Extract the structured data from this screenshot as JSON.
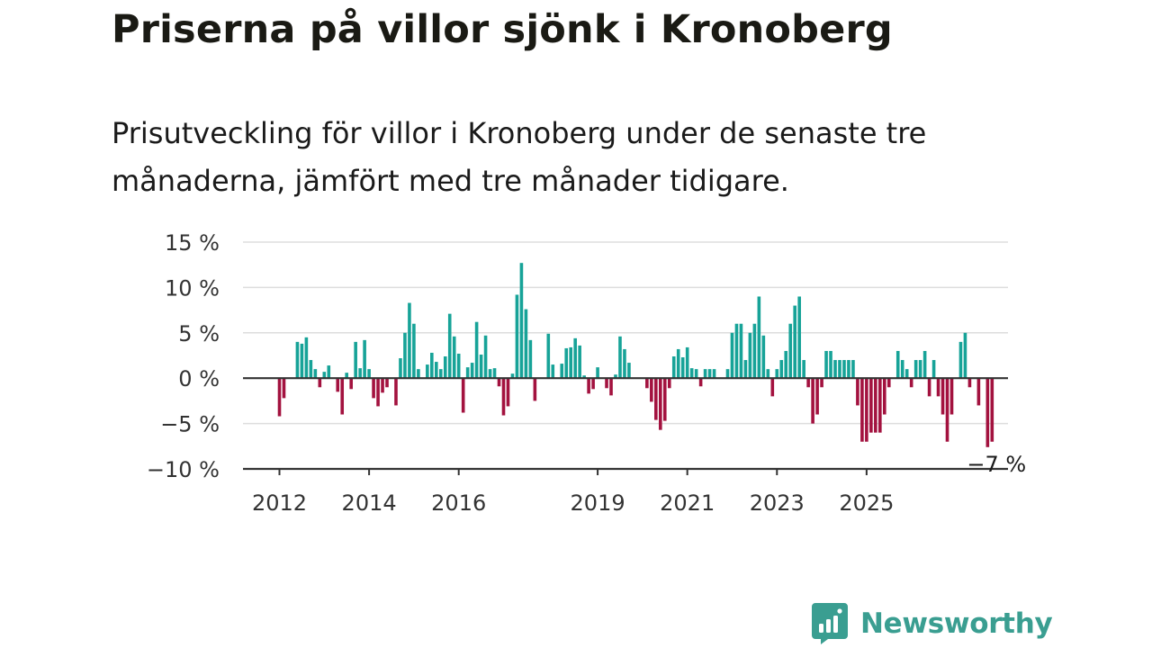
{
  "title": "Priserna på villor sjönk i Kronoberg",
  "subtitle": "Prisutveckling för villor i Kronoberg under de senaste tre månaderna, jämfört med tre månader tidigare.",
  "brand": {
    "name": "Newsworthy",
    "icon": "newsworthy-chart-icon",
    "color": "#3a9e91"
  },
  "colors": {
    "positive": "#17a398",
    "negative": "#a3123f",
    "grid": "#dddddd",
    "axis": "#333333"
  },
  "chart_data": {
    "type": "bar",
    "ylim": [
      -10,
      15
    ],
    "yticks": [
      {
        "value": 15,
        "label": "15 %"
      },
      {
        "value": 10,
        "label": "10 %"
      },
      {
        "value": 5,
        "label": "5 %"
      },
      {
        "value": 0,
        "label": "0 %"
      },
      {
        "value": -5,
        "label": "−5 %"
      },
      {
        "value": -10,
        "label": "−10 %"
      }
    ],
    "xticks": [
      {
        "label": "2012",
        "index": 0
      },
      {
        "label": "2014",
        "index": 20
      },
      {
        "label": "2016",
        "index": 40
      },
      {
        "label": "2019",
        "index": 71
      },
      {
        "label": "2021",
        "index": 91
      },
      {
        "label": "2023",
        "index": 111
      },
      {
        "label": "2025",
        "index": 131
      }
    ],
    "grid": true,
    "last_value_label": "−7 %",
    "values": [
      -4.2,
      -2.2,
      0,
      0,
      4.0,
      3.8,
      4.5,
      2.0,
      1.0,
      -1.0,
      0.7,
      1.4,
      0,
      -1.5,
      -4.0,
      0.6,
      -1.2,
      4.0,
      1.1,
      4.2,
      1.0,
      -2.2,
      -3.1,
      -1.6,
      -1.0,
      0,
      -3.0,
      2.2,
      5.0,
      8.3,
      6.0,
      1.0,
      0,
      1.5,
      2.8,
      1.8,
      1.0,
      2.4,
      7.1,
      4.6,
      2.7,
      -3.8,
      1.2,
      1.7,
      6.2,
      2.6,
      4.7,
      1.0,
      1.1,
      -0.9,
      -4.1,
      -3.1,
      0.5,
      9.2,
      12.7,
      7.6,
      4.2,
      -2.5,
      0,
      0,
      4.9,
      1.5,
      0,
      1.6,
      3.3,
      3.4,
      4.4,
      3.6,
      0.3,
      -1.7,
      -1.2,
      1.2,
      0,
      -1.1,
      -1.9,
      0.4,
      4.6,
      3.2,
      1.7,
      0,
      0,
      0,
      -1.1,
      -2.6,
      -4.6,
      -5.7,
      -4.7,
      -1.1,
      2.4,
      3.2,
      2.3,
      3.4,
      1.1,
      1.0,
      -0.9,
      1.0,
      1.0,
      1.0,
      0,
      0,
      1.0,
      5.0,
      6.0,
      6.0,
      2.0,
      5.0,
      6.0,
      9.0,
      4.7,
      1.0,
      -2.0,
      1.0,
      2.0,
      3.0,
      6.0,
      8.0,
      9.0,
      2.0,
      -1.0,
      -5.0,
      -4.0,
      -1.0,
      3.0,
      3.0,
      2.0,
      2.0,
      2.0,
      2.0,
      2.0,
      -3.0,
      -7.0,
      -7.0,
      -6.0,
      -6.0,
      -6.0,
      -4.0,
      -1.0,
      0,
      3.0,
      2.0,
      1.0,
      -1.0,
      2.0,
      2.0,
      3.0,
      -2.0,
      2.0,
      -2.0,
      -4.0,
      -7.0,
      -4.0,
      0,
      4.0,
      5.0,
      -1.0,
      0,
      -3.0,
      0,
      -7.6,
      -7.0
    ]
  }
}
